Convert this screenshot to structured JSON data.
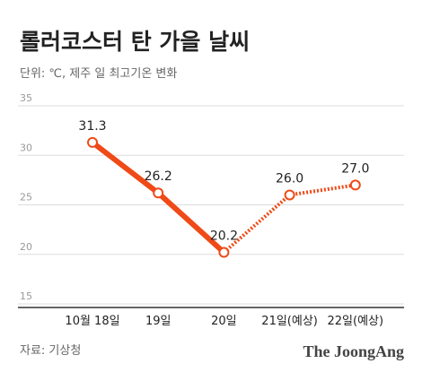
{
  "title": "롤러코스터 탄 가을 날씨",
  "subtitle": "단위: ℃, 제주 일 최고기온 변화",
  "source": "자료: 기상청",
  "logo": "The JoongAng",
  "chart_data": {
    "type": "line",
    "categories": [
      "10월 18일",
      "19일",
      "20일",
      "21일(예상)",
      "22일(예상)"
    ],
    "series": [
      {
        "color": "#ef4a17",
        "line_style": "solid",
        "values": [
          31.3,
          26.2,
          20.2,
          null,
          null
        ],
        "value_labels": [
          "31.3",
          "26.2",
          "20.2",
          null,
          null
        ]
      },
      {
        "color": "#ef4a17",
        "line_style": "dotted",
        "values": [
          null,
          null,
          20.2,
          26.0,
          27.0
        ],
        "value_labels": [
          null,
          null,
          null,
          "26.0",
          "27.0"
        ]
      }
    ],
    "ylim": [
      15,
      35
    ],
    "yticks": [
      15,
      20,
      25,
      30,
      35
    ],
    "grid": true
  }
}
